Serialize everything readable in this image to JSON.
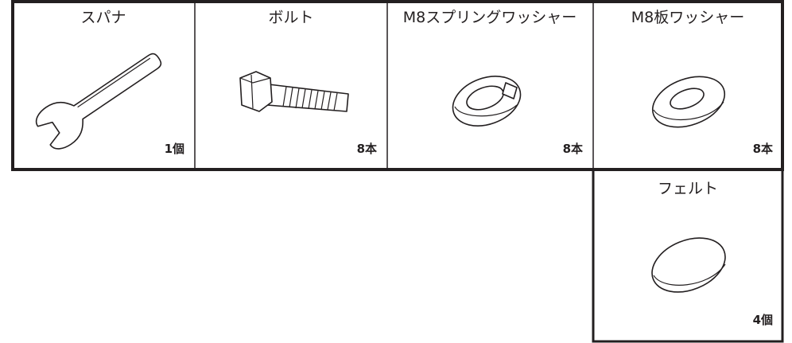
{
  "items": [
    {
      "name": "スパナ",
      "quantity": "1個"
    },
    {
      "name": "ボルト",
      "quantity": "8本"
    },
    {
      "name": "M8スプリングワッシャー",
      "quantity": "8本"
    },
    {
      "name": "M8板ワッシャー",
      "quantity": "8本"
    },
    {
      "name": "フェルト",
      "quantity": "4個"
    }
  ]
}
